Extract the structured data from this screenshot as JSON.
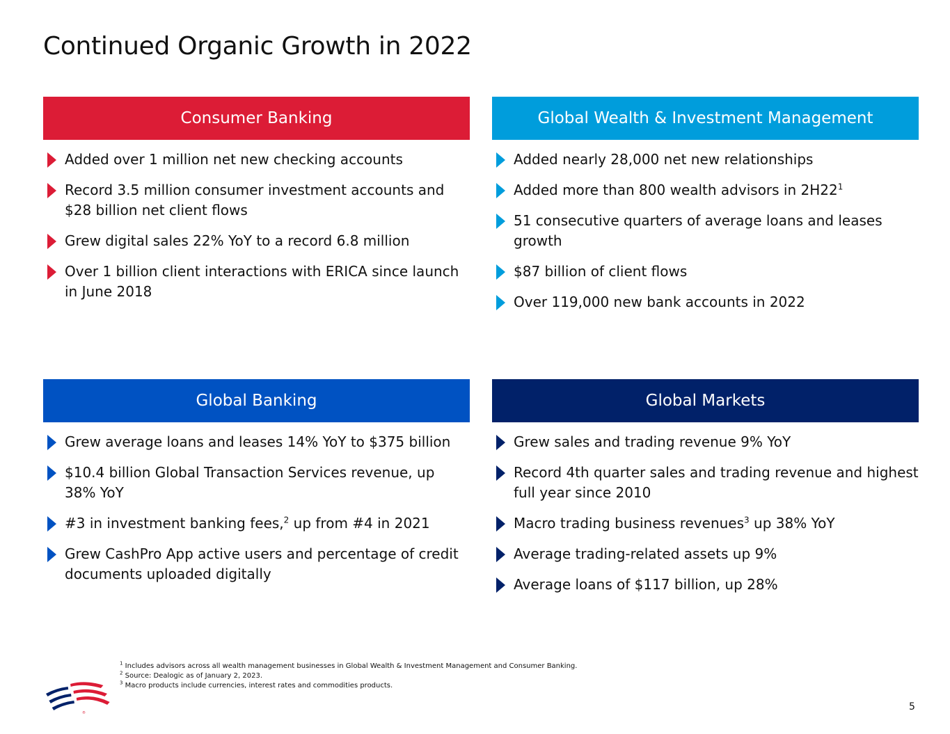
{
  "title": "Continued Organic Growth in 2022",
  "colors": {
    "consumer": "#DC1C36",
    "wealth": "#009DDC",
    "banking": "#0052C2",
    "markets": "#012169"
  },
  "panels": {
    "consumer": {
      "header": "Consumer Banking",
      "bullets": [
        {
          "text": "Added over 1 million net new checking accounts"
        },
        {
          "text": "Record 3.5 million consumer investment accounts and $28 billion net client flows"
        },
        {
          "text": "Grew digital sales 22% YoY to a record 6.8 million"
        },
        {
          "text": "Over 1 billion client interactions with ERICA since launch in June 2018"
        }
      ]
    },
    "wealth": {
      "header": "Global Wealth & Investment Management",
      "bullets": [
        {
          "text": "Added nearly 28,000 net new relationships"
        },
        {
          "text": "Added more than 800 wealth advisors in 2H22",
          "sup": "1",
          "after": ""
        },
        {
          "text": "51 consecutive quarters of average loans and leases growth"
        },
        {
          "text": "$87 billion of client flows"
        },
        {
          "text": "Over 119,000 new bank accounts in 2022"
        }
      ]
    },
    "banking": {
      "header": "Global Banking",
      "bullets": [
        {
          "text": "Grew average loans and leases 14% YoY to $375 billion"
        },
        {
          "text": "$10.4 billion Global Transaction Services revenue, up 38% YoY"
        },
        {
          "text": "#3 in investment banking fees,",
          "sup": "2",
          "after": " up from #4 in 2021"
        },
        {
          "text": "Grew CashPro App active users and percentage of credit documents uploaded digitally"
        }
      ]
    },
    "markets": {
      "header": "Global Markets",
      "bullets": [
        {
          "text": "Grew sales and trading revenue 9% YoY"
        },
        {
          "text": "Record 4th quarter sales and trading revenue and highest full year since 2010"
        },
        {
          "text": "Macro trading business revenues",
          "sup": "3",
          "after": " up 38% YoY"
        },
        {
          "text": "Average trading-related assets up 9%"
        },
        {
          "text": "Average loans of $117 billion, up 28%"
        }
      ]
    }
  },
  "footnotes": [
    {
      "num": "1",
      "text": "Includes advisors across all wealth management businesses in Global Wealth & Investment Management and Consumer Banking."
    },
    {
      "num": "2",
      "text": "Source: Dealogic as of January 2, 2023."
    },
    {
      "num": "3",
      "text": "Macro products include currencies, interest rates and commodities products."
    }
  ],
  "logo": "bank-flag-logo-icon",
  "page_number": "5"
}
